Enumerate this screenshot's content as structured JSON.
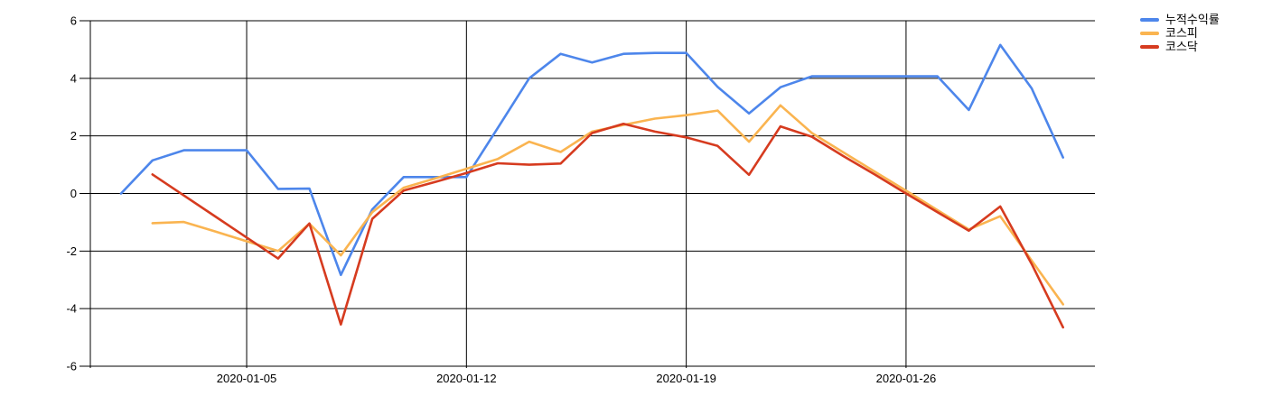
{
  "chart_data": {
    "type": "line",
    "title": "",
    "xlabel": "",
    "ylabel": "",
    "ylim": [
      -6,
      6
    ],
    "yticks": [
      6,
      4,
      2,
      0,
      -2,
      -4,
      -6
    ],
    "xtick_labels": [
      "2020-01-05",
      "2020-01-12",
      "2020-01-19",
      "2020-01-26"
    ],
    "grid": true,
    "legend_position": "top-right",
    "axis_color": "#000000",
    "background": "#ffffff",
    "x_dates": [
      "2020-01-01",
      "2020-01-02",
      "2020-01-03",
      "2020-01-04",
      "2020-01-05",
      "2020-01-06",
      "2020-01-07",
      "2020-01-08",
      "2020-01-09",
      "2020-01-10",
      "2020-01-11",
      "2020-01-12",
      "2020-01-13",
      "2020-01-14",
      "2020-01-15",
      "2020-01-16",
      "2020-01-17",
      "2020-01-18",
      "2020-01-19",
      "2020-01-20",
      "2020-01-21",
      "2020-01-22",
      "2020-01-23",
      "2020-01-24",
      "2020-01-25",
      "2020-01-26",
      "2020-01-27",
      "2020-01-28",
      "2020-01-29",
      "2020-01-30",
      "2020-01-31"
    ],
    "series": [
      {
        "name": "누적수익률",
        "color": "#4d86eb",
        "values": [
          0.0,
          1.15,
          1.5,
          1.5,
          1.5,
          0.16,
          0.17,
          -2.83,
          -0.55,
          0.57,
          0.57,
          0.57,
          2.28,
          4.0,
          4.85,
          4.55,
          4.85,
          4.88,
          4.88,
          3.7,
          2.78,
          3.69,
          4.07,
          4.07,
          4.07,
          4.07,
          4.07,
          2.9,
          5.16,
          3.65,
          1.25
        ]
      },
      {
        "name": "코스피",
        "color": "#fab450",
        "values": [
          null,
          -1.03,
          -0.99,
          -1.32,
          -1.66,
          -2.0,
          -1.05,
          -2.15,
          -0.65,
          0.2,
          0.52,
          0.86,
          1.2,
          1.8,
          1.44,
          2.15,
          2.38,
          2.6,
          2.72,
          2.88,
          1.8,
          3.06,
          2.1,
          1.43,
          0.76,
          0.1,
          -0.58,
          -1.25,
          -0.79,
          -2.33,
          -3.85
        ]
      },
      {
        "name": "코스닥",
        "color": "#d63b1f",
        "values": [
          null,
          0.66,
          -0.07,
          -0.8,
          -1.53,
          -2.26,
          -1.04,
          -4.55,
          -0.88,
          0.1,
          0.4,
          0.71,
          1.05,
          1.0,
          1.04,
          2.1,
          2.42,
          2.15,
          1.95,
          1.65,
          0.65,
          2.33,
          1.97,
          1.3,
          0.66,
          0.0,
          -0.65,
          -1.29,
          -0.45,
          -2.45,
          -4.65
        ]
      }
    ]
  }
}
